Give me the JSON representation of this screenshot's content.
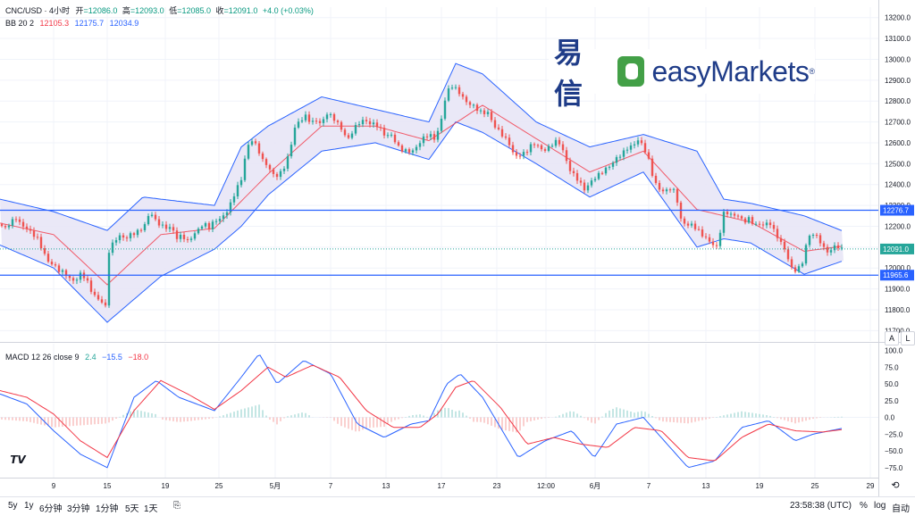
{
  "legend": {
    "symbol": "CNC/USD · 4小时",
    "open_label": "开",
    "open": "=12086.0",
    "high_label": "高",
    "high": "=12093.0",
    "low_label": "低",
    "low": "=12085.0",
    "close_label": "收",
    "close": "=12091.0",
    "change": "+4.0 (+0.03%)",
    "bb_label": "BB 20 2",
    "bb_mid": "12105.3",
    "bb_upper": "12175.7",
    "bb_lower": "12034.9",
    "macd_label": "MACD 12 26 close 9",
    "macd_hist": "2.4",
    "macd_line": "−15.5",
    "macd_signal": "−18.0"
  },
  "logo": {
    "cn": "易信",
    "en": "easyMarkets",
    "reg": "®"
  },
  "price_axis": {
    "ticks": [
      "13200.0",
      "13100.0",
      "13000.0",
      "12900.0",
      "12800.0",
      "12700.0",
      "12600.0",
      "12500.0",
      "12400.0",
      "12300.0",
      "12200.0",
      "12100.0",
      "12000.0",
      "11900.0",
      "11800.0",
      "11700.0"
    ],
    "label_upper_line": "12276.7",
    "label_current": "12091.0",
    "label_lower_line": "11965.6"
  },
  "macd_axis": {
    "ticks": [
      "100.0",
      "75.0",
      "50.0",
      "25.0",
      "0.0",
      "−25.0",
      "−50.0",
      "−75.0"
    ]
  },
  "time_axis": {
    "ticks": [
      "9",
      "15",
      "19",
      "25",
      "5月",
      "7",
      "13",
      "17",
      "23",
      "12:00",
      "6月",
      "7",
      "13",
      "19",
      "25",
      "29"
    ]
  },
  "scale_buttons": {
    "auto": "A",
    "log": "L"
  },
  "bottom": {
    "ranges": [
      "5y",
      "1y",
      "6分钟",
      "3分钟",
      "1分钟",
      "5天",
      "1天"
    ],
    "time": "23:58:38 (UTC)",
    "pct": "%",
    "log": "log",
    "auto": "自动"
  },
  "colors": {
    "up": "#26a69a",
    "down": "#ef5350",
    "bb_mid": "#f23645",
    "bb_band": "#2962ff",
    "bb_fill": "#e8e6f6",
    "macd": "#2962ff",
    "signal": "#f23645",
    "hline": "#2962ff"
  },
  "chart_data": [
    {
      "type": "candlestick",
      "title": "CNC/USD · 4小时",
      "ylim": [
        11650,
        13250
      ],
      "y_ticks": [
        11700,
        11800,
        11900,
        12000,
        12100,
        12200,
        12300,
        12400,
        12500,
        12600,
        12700,
        12800,
        12900,
        13000,
        13100,
        13200
      ],
      "horizontal_lines": [
        12276.7,
        11965.6
      ],
      "last_price": 12091.0,
      "close_path": [
        [
          0,
          12210
        ],
        [
          6,
          12200
        ],
        [
          12,
          12235
        ],
        [
          18,
          12250
        ],
        [
          24,
          12205
        ],
        [
          30,
          12180
        ],
        [
          36,
          12150
        ],
        [
          42,
          12130
        ],
        [
          48,
          12080
        ],
        [
          54,
          12040
        ],
        [
          60,
          12030
        ],
        [
          66,
          12000
        ],
        [
          72,
          11980
        ],
        [
          78,
          11940
        ],
        [
          84,
          11920
        ],
        [
          90,
          11960
        ],
        [
          96,
          11950
        ],
        [
          102,
          11900
        ],
        [
          108,
          11870
        ],
        [
          114,
          11850
        ],
        [
          118,
          11820
        ],
        [
          122,
          12080
        ],
        [
          128,
          12120
        ],
        [
          134,
          12140
        ],
        [
          140,
          12130
        ],
        [
          146,
          12160
        ],
        [
          152,
          12180
        ],
        [
          158,
          12200
        ],
        [
          164,
          12230
        ],
        [
          168,
          12280
        ],
        [
          174,
          12220
        ],
        [
          180,
          12190
        ],
        [
          186,
          12180
        ],
        [
          192,
          12190
        ],
        [
          198,
          12150
        ],
        [
          204,
          12170
        ],
        [
          210,
          12140
        ],
        [
          216,
          12160
        ],
        [
          222,
          12180
        ],
        [
          228,
          12200
        ],
        [
          234,
          12180
        ],
        [
          240,
          12220
        ],
        [
          246,
          12240
        ],
        [
          252,
          12270
        ],
        [
          258,
          12320
        ],
        [
          264,
          12380
        ],
        [
          270,
          12420
        ],
        [
          276,
          12560
        ],
        [
          282,
          12600
        ],
        [
          288,
          12570
        ],
        [
          294,
          12520
        ],
        [
          300,
          12500
        ],
        [
          306,
          12460
        ],
        [
          312,
          12450
        ],
        [
          318,
          12480
        ],
        [
          324,
          12540
        ],
        [
          330,
          12660
        ],
        [
          336,
          12700
        ],
        [
          342,
          12730
        ],
        [
          348,
          12710
        ],
        [
          354,
          12720
        ],
        [
          360,
          12700
        ],
        [
          366,
          12740
        ],
        [
          372,
          12710
        ],
        [
          378,
          12680
        ],
        [
          384,
          12640
        ],
        [
          390,
          12620
        ],
        [
          396,
          12680
        ],
        [
          402,
          12710
        ],
        [
          408,
          12720
        ],
        [
          414,
          12690
        ],
        [
          420,
          12680
        ],
        [
          426,
          12650
        ],
        [
          432,
          12620
        ],
        [
          438,
          12640
        ],
        [
          444,
          12600
        ],
        [
          450,
          12580
        ],
        [
          456,
          12570
        ],
        [
          462,
          12560
        ],
        [
          468,
          12580
        ],
        [
          474,
          12610
        ],
        [
          480,
          12630
        ],
        [
          486,
          12620
        ],
        [
          492,
          12680
        ],
        [
          498,
          12820
        ],
        [
          504,
          12890
        ],
        [
          510,
          12860
        ],
        [
          516,
          12820
        ],
        [
          522,
          12780
        ],
        [
          528,
          12770
        ],
        [
          534,
          12760
        ],
        [
          540,
          12750
        ],
        [
          546,
          12760
        ],
        [
          552,
          12700
        ],
        [
          558,
          12660
        ],
        [
          564,
          12620
        ],
        [
          570,
          12580
        ],
        [
          576,
          12520
        ],
        [
          582,
          12540
        ],
        [
          588,
          12560
        ],
        [
          594,
          12600
        ],
        [
          600,
          12610
        ],
        [
          606,
          12570
        ],
        [
          612,
          12560
        ],
        [
          618,
          12580
        ],
        [
          624,
          12600
        ],
        [
          630,
          12560
        ],
        [
          636,
          12490
        ],
        [
          642,
          12460
        ],
        [
          648,
          12430
        ],
        [
          654,
          12380
        ],
        [
          660,
          12400
        ],
        [
          666,
          12420
        ],
        [
          672,
          12440
        ],
        [
          678,
          12470
        ],
        [
          684,
          12500
        ],
        [
          690,
          12540
        ],
        [
          696,
          12560
        ],
        [
          702,
          12580
        ],
        [
          708,
          12580
        ],
        [
          714,
          12600
        ],
        [
          720,
          12570
        ],
        [
          726,
          12510
        ],
        [
          732,
          12420
        ],
        [
          738,
          12390
        ],
        [
          744,
          12380
        ],
        [
          750,
          12390
        ],
        [
          756,
          12360
        ],
        [
          762,
          12220
        ],
        [
          768,
          12190
        ],
        [
          774,
          12200
        ],
        [
          780,
          12190
        ],
        [
          786,
          12170
        ],
        [
          792,
          12150
        ],
        [
          798,
          12120
        ],
        [
          804,
          12090
        ],
        [
          808,
          12250
        ],
        [
          814,
          12250
        ],
        [
          820,
          12240
        ],
        [
          826,
          12250
        ],
        [
          832,
          12230
        ],
        [
          838,
          12250
        ],
        [
          844,
          12220
        ],
        [
          850,
          12210
        ],
        [
          856,
          12200
        ],
        [
          862,
          12200
        ],
        [
          868,
          12150
        ],
        [
          874,
          12120
        ],
        [
          880,
          12080
        ],
        [
          886,
          12010
        ],
        [
          892,
          12000
        ],
        [
          898,
          12030
        ],
        [
          904,
          12140
        ],
        [
          910,
          12150
        ],
        [
          916,
          12130
        ],
        [
          922,
          12090
        ],
        [
          928,
          12080
        ],
        [
          934,
          12120
        ],
        [
          940,
          12110
        ],
        [
          944,
          12091
        ]
      ]
    },
    {
      "type": "line",
      "title": "BB 20 2",
      "series": [
        {
          "name": "BB basis",
          "values": [
            [
              0,
              12215
            ],
            [
              60,
              12160
            ],
            [
              120,
              11920
            ],
            [
              180,
              12160
            ],
            [
              240,
              12190
            ],
            [
              300,
              12450
            ],
            [
              360,
              12680
            ],
            [
              420,
              12680
            ],
            [
              480,
              12610
            ],
            [
              540,
              12780
            ],
            [
              600,
              12620
            ],
            [
              660,
              12460
            ],
            [
              720,
              12560
            ],
            [
              780,
              12280
            ],
            [
              840,
              12220
            ],
            [
              900,
              12080
            ],
            [
              944,
              12105
            ]
          ]
        },
        {
          "name": "BB upper",
          "values": [
            [
              0,
              12330
            ],
            [
              60,
              12270
            ],
            [
              120,
              12180
            ],
            [
              160,
              12340
            ],
            [
              240,
              12300
            ],
            [
              270,
              12580
            ],
            [
              300,
              12680
            ],
            [
              360,
              12820
            ],
            [
              420,
              12760
            ],
            [
              480,
              12700
            ],
            [
              510,
              12980
            ],
            [
              540,
              12930
            ],
            [
              600,
              12700
            ],
            [
              660,
              12580
            ],
            [
              720,
              12640
            ],
            [
              780,
              12560
            ],
            [
              810,
              12330
            ],
            [
              840,
              12310
            ],
            [
              900,
              12250
            ],
            [
              944,
              12176
            ]
          ]
        },
        {
          "name": "BB lower",
          "values": [
            [
              0,
              12110
            ],
            [
              60,
              12000
            ],
            [
              120,
              11740
            ],
            [
              180,
              11960
            ],
            [
              240,
              12090
            ],
            [
              270,
              12200
            ],
            [
              300,
              12350
            ],
            [
              360,
              12560
            ],
            [
              420,
              12600
            ],
            [
              480,
              12520
            ],
            [
              510,
              12700
            ],
            [
              540,
              12650
            ],
            [
              600,
              12500
            ],
            [
              660,
              12340
            ],
            [
              720,
              12460
            ],
            [
              780,
              12100
            ],
            [
              810,
              12140
            ],
            [
              840,
              12120
            ],
            [
              900,
              11970
            ],
            [
              944,
              12035
            ]
          ]
        }
      ]
    },
    {
      "type": "line",
      "title": "MACD 12 26 close 9",
      "ylim": [
        -90,
        110
      ],
      "y_ticks": [
        100,
        75,
        50,
        25,
        0,
        -25,
        -50,
        -75
      ],
      "series": [
        {
          "name": "MACD",
          "values": [
            [
              0,
              35
            ],
            [
              30,
              20
            ],
            [
              60,
              -20
            ],
            [
              90,
              -55
            ],
            [
              120,
              -75
            ],
            [
              150,
              30
            ],
            [
              175,
              55
            ],
            [
              200,
              30
            ],
            [
              240,
              10
            ],
            [
              270,
              60
            ],
            [
              290,
              95
            ],
            [
              310,
              50
            ],
            [
              340,
              85
            ],
            [
              370,
              65
            ],
            [
              400,
              -10
            ],
            [
              430,
              -30
            ],
            [
              460,
              -10
            ],
            [
              480,
              -5
            ],
            [
              500,
              50
            ],
            [
              515,
              65
            ],
            [
              540,
              30
            ],
            [
              580,
              -60
            ],
            [
              610,
              -35
            ],
            [
              640,
              -20
            ],
            [
              665,
              -60
            ],
            [
              690,
              -10
            ],
            [
              720,
              0
            ],
            [
              770,
              -75
            ],
            [
              800,
              -65
            ],
            [
              830,
              -15
            ],
            [
              860,
              -5
            ],
            [
              890,
              -35
            ],
            [
              910,
              -25
            ],
            [
              944,
              -16
            ]
          ]
        },
        {
          "name": "Signal",
          "values": [
            [
              0,
              40
            ],
            [
              30,
              30
            ],
            [
              60,
              5
            ],
            [
              90,
              -35
            ],
            [
              120,
              -60
            ],
            [
              150,
              10
            ],
            [
              180,
              55
            ],
            [
              210,
              35
            ],
            [
              240,
              12
            ],
            [
              270,
              40
            ],
            [
              300,
              75
            ],
            [
              320,
              60
            ],
            [
              350,
              78
            ],
            [
              380,
              60
            ],
            [
              410,
              10
            ],
            [
              440,
              -15
            ],
            [
              470,
              -15
            ],
            [
              490,
              5
            ],
            [
              510,
              45
            ],
            [
              530,
              55
            ],
            [
              560,
              15
            ],
            [
              590,
              -40
            ],
            [
              620,
              -30
            ],
            [
              650,
              -40
            ],
            [
              680,
              -45
            ],
            [
              710,
              -15
            ],
            [
              740,
              -20
            ],
            [
              770,
              -60
            ],
            [
              800,
              -65
            ],
            [
              830,
              -30
            ],
            [
              860,
              -10
            ],
            [
              890,
              -20
            ],
            [
              920,
              -22
            ],
            [
              944,
              -18
            ]
          ]
        }
      ]
    }
  ]
}
